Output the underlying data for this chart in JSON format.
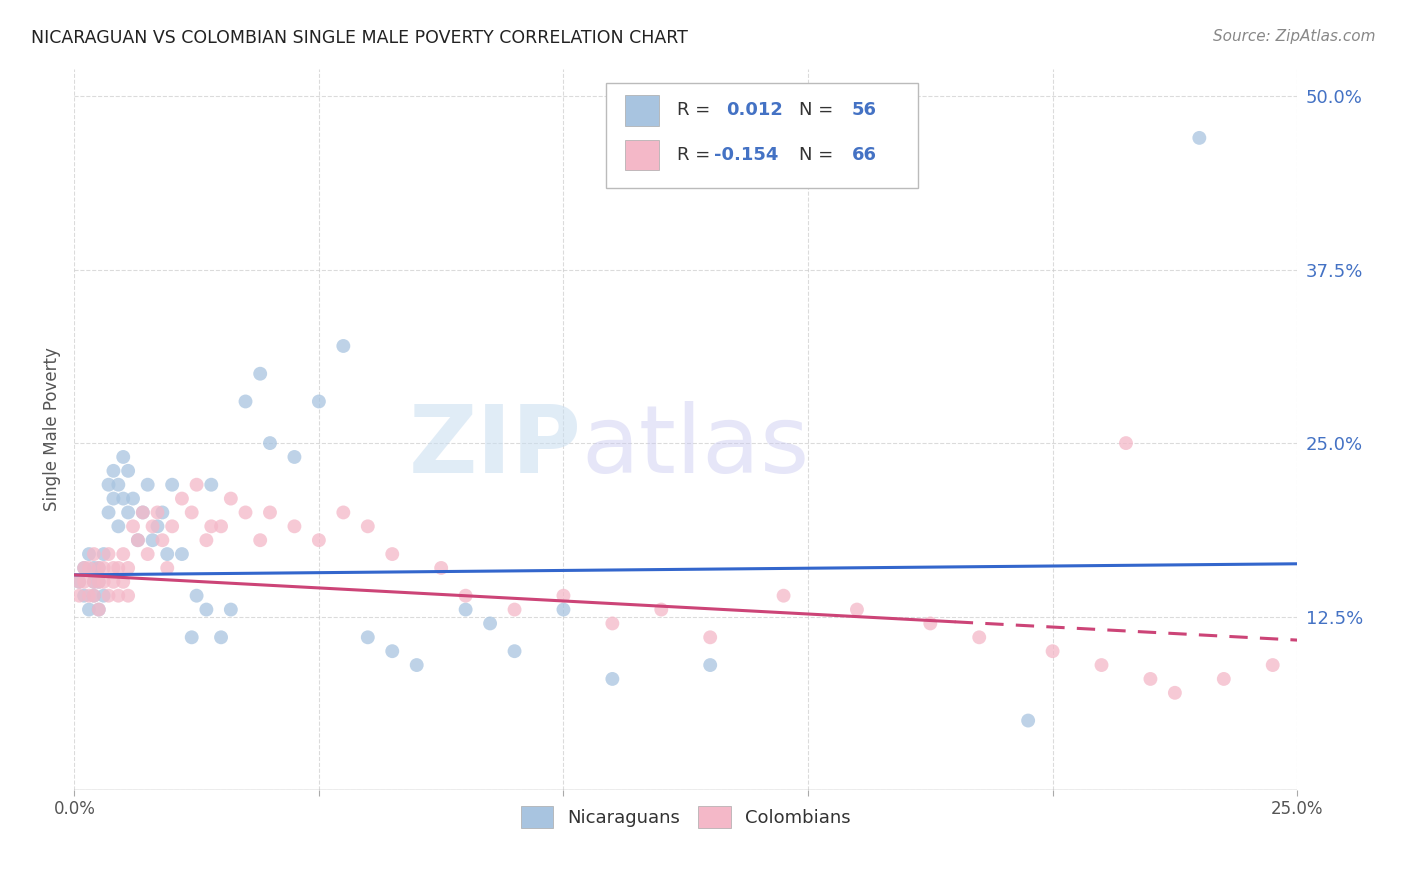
{
  "title": "NICARAGUAN VS COLOMBIAN SINGLE MALE POVERTY CORRELATION CHART",
  "source": "Source: ZipAtlas.com",
  "ylabel": "Single Male Poverty",
  "yticks": [
    0.0,
    0.125,
    0.25,
    0.375,
    0.5
  ],
  "ytick_labels": [
    "",
    "12.5%",
    "25.0%",
    "37.5%",
    "50.0%"
  ],
  "xlim": [
    0.0,
    0.25
  ],
  "ylim": [
    0.0,
    0.52
  ],
  "watermark_zip": "ZIP",
  "watermark_atlas": "atlas",
  "nic_color": "#a8c4e0",
  "col_color": "#f4b8c8",
  "nic_line_color": "#3366cc",
  "col_line_color": "#cc4477",
  "background_color": "#ffffff",
  "grid_color": "#cccccc",
  "nic_R": 0.012,
  "col_R": -0.154,
  "nic_N": 56,
  "col_N": 66,
  "nic_points_x": [
    0.001,
    0.002,
    0.002,
    0.003,
    0.003,
    0.004,
    0.004,
    0.004,
    0.005,
    0.005,
    0.005,
    0.006,
    0.006,
    0.007,
    0.007,
    0.008,
    0.008,
    0.009,
    0.009,
    0.01,
    0.01,
    0.011,
    0.011,
    0.012,
    0.013,
    0.014,
    0.015,
    0.016,
    0.017,
    0.018,
    0.019,
    0.02,
    0.022,
    0.024,
    0.025,
    0.027,
    0.028,
    0.03,
    0.032,
    0.035,
    0.038,
    0.04,
    0.045,
    0.05,
    0.055,
    0.06,
    0.065,
    0.07,
    0.08,
    0.085,
    0.09,
    0.1,
    0.11,
    0.13,
    0.195,
    0.23
  ],
  "nic_points_y": [
    0.15,
    0.14,
    0.16,
    0.13,
    0.17,
    0.15,
    0.16,
    0.14,
    0.13,
    0.15,
    0.16,
    0.17,
    0.14,
    0.22,
    0.2,
    0.21,
    0.23,
    0.19,
    0.22,
    0.24,
    0.21,
    0.2,
    0.23,
    0.21,
    0.18,
    0.2,
    0.22,
    0.18,
    0.19,
    0.2,
    0.17,
    0.22,
    0.17,
    0.11,
    0.14,
    0.13,
    0.22,
    0.11,
    0.13,
    0.28,
    0.3,
    0.25,
    0.24,
    0.28,
    0.32,
    0.11,
    0.1,
    0.09,
    0.13,
    0.12,
    0.1,
    0.13,
    0.08,
    0.09,
    0.05,
    0.47
  ],
  "col_points_x": [
    0.001,
    0.001,
    0.002,
    0.002,
    0.003,
    0.003,
    0.004,
    0.004,
    0.004,
    0.005,
    0.005,
    0.005,
    0.006,
    0.006,
    0.007,
    0.007,
    0.008,
    0.008,
    0.009,
    0.009,
    0.01,
    0.01,
    0.011,
    0.011,
    0.012,
    0.013,
    0.014,
    0.015,
    0.016,
    0.017,
    0.018,
    0.019,
    0.02,
    0.022,
    0.024,
    0.025,
    0.027,
    0.028,
    0.03,
    0.032,
    0.035,
    0.038,
    0.04,
    0.045,
    0.05,
    0.055,
    0.06,
    0.065,
    0.075,
    0.08,
    0.09,
    0.1,
    0.11,
    0.12,
    0.13,
    0.145,
    0.16,
    0.175,
    0.185,
    0.2,
    0.21,
    0.215,
    0.22,
    0.225,
    0.235,
    0.245
  ],
  "col_points_y": [
    0.15,
    0.14,
    0.16,
    0.15,
    0.14,
    0.16,
    0.15,
    0.17,
    0.14,
    0.16,
    0.15,
    0.13,
    0.16,
    0.15,
    0.17,
    0.14,
    0.16,
    0.15,
    0.14,
    0.16,
    0.17,
    0.15,
    0.16,
    0.14,
    0.19,
    0.18,
    0.2,
    0.17,
    0.19,
    0.2,
    0.18,
    0.16,
    0.19,
    0.21,
    0.2,
    0.22,
    0.18,
    0.19,
    0.19,
    0.21,
    0.2,
    0.18,
    0.2,
    0.19,
    0.18,
    0.2,
    0.19,
    0.17,
    0.16,
    0.14,
    0.13,
    0.14,
    0.12,
    0.13,
    0.11,
    0.14,
    0.13,
    0.12,
    0.11,
    0.1,
    0.09,
    0.25,
    0.08,
    0.07,
    0.08,
    0.09
  ]
}
